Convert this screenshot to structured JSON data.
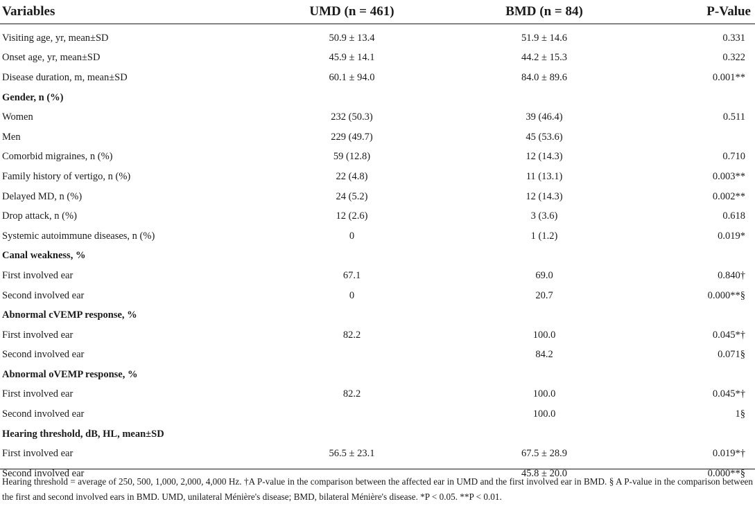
{
  "header": {
    "variables": "Variables",
    "umd": "UMD (n = 461)",
    "bmd": "BMD (n = 84)",
    "pvalue": "P-Value"
  },
  "rows": [
    {
      "label": "Visiting age, yr, mean±SD",
      "umd": "50.9 ± 13.4",
      "bmd": "51.9 ± 14.6",
      "p": "0.331"
    },
    {
      "label": "Onset age, yr, mean±SD",
      "umd": "45.9 ± 14.1",
      "bmd": "44.2 ± 15.3",
      "p": "0.322"
    },
    {
      "label": "Disease duration, m, mean±SD",
      "umd": "60.1 ± 94.0",
      "bmd": "84.0 ± 89.6",
      "p": "0.001**"
    },
    {
      "label": "Gender, n (%)",
      "umd": "",
      "bmd": "",
      "p": ""
    },
    {
      "label": "Women",
      "umd": "232 (50.3)",
      "bmd": "39 (46.4)",
      "p": "0.511"
    },
    {
      "label": "Men",
      "umd": "229 (49.7)",
      "bmd": "45 (53.6)",
      "p": ""
    },
    {
      "label": "Comorbid migraines, n (%)",
      "umd": "59 (12.8)",
      "bmd": "12 (14.3)",
      "p": "0.710"
    },
    {
      "label": "Family history of vertigo, n (%)",
      "umd": "22 (4.8)",
      "bmd": "11 (13.1)",
      "p": "0.003**"
    },
    {
      "label": "Delayed MD, n (%)",
      "umd": "24 (5.2)",
      "bmd": "12 (14.3)",
      "p": "0.002**"
    },
    {
      "label": "Drop attack, n (%)",
      "umd": "12 (2.6)",
      "bmd": "3 (3.6)",
      "p": "0.618"
    },
    {
      "label": "Systemic autoimmune diseases, n (%)",
      "umd": "0",
      "bmd": "1 (1.2)",
      "p": "0.019*"
    },
    {
      "label": "Canal weakness, %",
      "umd": "",
      "bmd": "",
      "p": ""
    },
    {
      "label": "First involved ear",
      "umd": "67.1",
      "bmd": "69.0",
      "p": "0.840†"
    },
    {
      "label": "Second involved ear",
      "umd": "0",
      "bmd": "20.7",
      "p": "0.000**§"
    },
    {
      "label": "Abnormal cVEMP response, %",
      "umd": "",
      "bmd": "",
      "p": ""
    },
    {
      "label": "First involved ear",
      "umd": "82.2",
      "bmd": "100.0",
      "p": "0.045*†"
    },
    {
      "label": "Second involved ear",
      "umd": "",
      "bmd": "84.2",
      "p": "0.071§"
    },
    {
      "label": "Abnormal oVEMP response, %",
      "umd": "",
      "bmd": "",
      "p": ""
    },
    {
      "label": "First involved ear",
      "umd": "82.2",
      "bmd": "100.0",
      "p": "0.045*†"
    },
    {
      "label": "Second involved ear",
      "umd": "",
      "bmd": "100.0",
      "p": "1§"
    },
    {
      "label": "Hearing threshold, dB, HL, mean±SD",
      "umd": "",
      "bmd": "",
      "p": ""
    },
    {
      "label": "First involved ear",
      "umd": "56.5 ± 23.1",
      "bmd": "67.5 ± 28.9",
      "p": "0.019*†"
    },
    {
      "label": "Second involved ear",
      "umd": "",
      "bmd": "45.8 ± 20.0",
      "p": "0.000**§"
    }
  ],
  "footnote": "Hearing threshold = average of 250, 500, 1,000, 2,000, 4,000 Hz. †A P-value in the comparison between the affected ear in UMD and the first involved ear in BMD. § A P-value in the comparison between the first and second involved ears in BMD. UMD, unilateral Ménière's disease; BMD, bilateral Ménière's disease. *P < 0.05. **P < 0.01."
}
